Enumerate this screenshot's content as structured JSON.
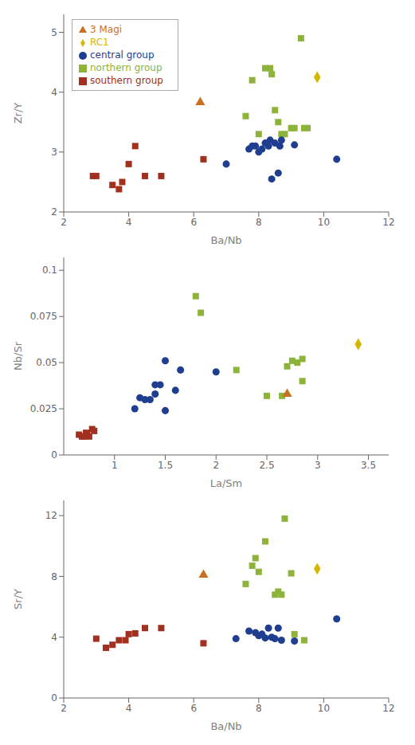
{
  "chart_data": [
    {
      "type": "scatter",
      "xlabel": "Ba/Nb",
      "ylabel": "Zr/Y",
      "xlim": [
        2,
        12
      ],
      "ylim": [
        2,
        5.3
      ],
      "xticks": [
        2,
        4,
        6,
        8,
        10,
        12
      ],
      "yticks": [
        2,
        3,
        4,
        5
      ],
      "grid": false,
      "legend": "upper left",
      "series": [
        {
          "name": "northern group",
          "color": "#8db33a",
          "marker": "square",
          "x": [
            7.6,
            7.8,
            8.0,
            8.2,
            8.35,
            8.4,
            8.5,
            8.6,
            8.7,
            8.8,
            9.0,
            9.1,
            9.3,
            9.4,
            9.5
          ],
          "values": [
            3.6,
            4.2,
            3.3,
            4.4,
            4.4,
            4.3,
            3.7,
            3.5,
            3.3,
            3.3,
            3.4,
            3.4,
            4.9,
            3.4,
            3.4
          ]
        },
        {
          "name": "central group",
          "color": "#1f3e8f",
          "marker": "circle",
          "x": [
            7.0,
            7.7,
            7.8,
            7.9,
            8.0,
            8.1,
            8.2,
            8.3,
            8.35,
            8.4,
            8.5,
            8.6,
            8.65,
            8.7,
            9.1,
            10.4
          ],
          "values": [
            2.8,
            3.05,
            3.1,
            3.1,
            3.0,
            3.05,
            3.15,
            3.1,
            3.2,
            2.55,
            3.15,
            2.65,
            3.1,
            3.2,
            3.12,
            2.88
          ]
        },
        {
          "name": "southern group",
          "color": "#a03020",
          "marker": "square",
          "x": [
            2.9,
            3.0,
            3.5,
            3.7,
            3.8,
            4.0,
            4.2,
            4.5,
            5.0,
            6.3
          ],
          "values": [
            2.6,
            2.6,
            2.45,
            2.38,
            2.5,
            2.8,
            3.1,
            2.6,
            2.6,
            2.88
          ]
        },
        {
          "name": "RC1",
          "color": "#d4b800",
          "marker": "diamond",
          "x": [
            9.8
          ],
          "values": [
            4.25
          ]
        },
        {
          "name": "3 Magi",
          "color": "#c87020",
          "marker": "triangle",
          "x": [
            6.2
          ],
          "values": [
            3.83
          ]
        }
      ]
    },
    {
      "type": "scatter",
      "xlabel": "La/Sm",
      "ylabel": "Nb/Sr",
      "xlim": [
        0.5,
        3.7
      ],
      "ylim": [
        0,
        0.107
      ],
      "xticks": [
        1.0,
        1.5,
        2.0,
        2.5,
        3.0,
        3.5
      ],
      "yticks": [
        0,
        0.025,
        0.05,
        0.075,
        0.1
      ],
      "grid": false,
      "series": [
        {
          "name": "northern group",
          "color": "#8db33a",
          "marker": "square",
          "x": [
            1.8,
            1.85,
            2.2,
            2.5,
            2.65,
            2.7,
            2.75,
            2.8,
            2.85,
            2.85
          ],
          "values": [
            0.086,
            0.077,
            0.046,
            0.032,
            0.032,
            0.048,
            0.051,
            0.05,
            0.052,
            0.04
          ]
        },
        {
          "name": "central group",
          "color": "#1f3e8f",
          "marker": "circle",
          "x": [
            1.2,
            1.25,
            1.3,
            1.35,
            1.4,
            1.4,
            1.45,
            1.5,
            1.5,
            1.6,
            1.65,
            2.0
          ],
          "values": [
            0.025,
            0.031,
            0.03,
            0.03,
            0.033,
            0.038,
            0.038,
            0.024,
            0.051,
            0.035,
            0.046,
            0.045
          ]
        },
        {
          "name": "southern group",
          "color": "#a03020",
          "marker": "square",
          "x": [
            0.65,
            0.68,
            0.7,
            0.72,
            0.73,
            0.75,
            0.78,
            0.8
          ],
          "values": [
            0.011,
            0.01,
            0.01,
            0.012,
            0.011,
            0.01,
            0.014,
            0.013
          ]
        },
        {
          "name": "RC1",
          "color": "#d4b800",
          "marker": "diamond",
          "x": [
            3.4
          ],
          "values": [
            0.06
          ]
        },
        {
          "name": "3 Magi",
          "color": "#c87020",
          "marker": "triangle",
          "x": [
            2.7
          ],
          "values": [
            0.033
          ]
        }
      ]
    },
    {
      "type": "scatter",
      "xlabel": "Ba/Nb",
      "ylabel": "Sr/Y",
      "xlim": [
        2,
        12
      ],
      "ylim": [
        0,
        13
      ],
      "xticks": [
        2,
        4,
        6,
        8,
        10,
        12
      ],
      "yticks": [
        0,
        4,
        8,
        12
      ],
      "grid": false,
      "series": [
        {
          "name": "northern group",
          "color": "#8db33a",
          "marker": "square",
          "x": [
            7.6,
            7.8,
            7.9,
            8.0,
            8.2,
            8.5,
            8.6,
            8.7,
            8.8,
            9.0,
            9.1,
            9.4
          ],
          "values": [
            7.5,
            8.7,
            9.2,
            8.3,
            10.3,
            6.8,
            7.0,
            6.8,
            11.8,
            8.2,
            4.2,
            3.8
          ]
        },
        {
          "name": "central group",
          "color": "#1f3e8f",
          "marker": "circle",
          "x": [
            7.3,
            7.7,
            7.9,
            8.0,
            8.1,
            8.2,
            8.3,
            8.4,
            8.5,
            8.6,
            8.7,
            9.1,
            10.4
          ],
          "values": [
            3.9,
            4.4,
            4.3,
            4.1,
            4.2,
            3.95,
            4.6,
            4.0,
            3.9,
            4.6,
            3.8,
            3.75,
            5.2
          ]
        },
        {
          "name": "southern group",
          "color": "#a03020",
          "marker": "square",
          "x": [
            3.0,
            3.3,
            3.5,
            3.7,
            3.9,
            4.0,
            4.2,
            4.5,
            5.0,
            6.3
          ],
          "values": [
            3.9,
            3.3,
            3.5,
            3.8,
            3.8,
            4.2,
            4.25,
            4.6,
            4.6,
            3.6
          ]
        },
        {
          "name": "RC1",
          "color": "#d4b800",
          "marker": "diamond",
          "x": [
            9.8
          ],
          "values": [
            8.5
          ]
        },
        {
          "name": "3 Magi",
          "color": "#c87020",
          "marker": "triangle",
          "x": [
            6.3
          ],
          "values": [
            8.1
          ]
        }
      ]
    }
  ]
}
